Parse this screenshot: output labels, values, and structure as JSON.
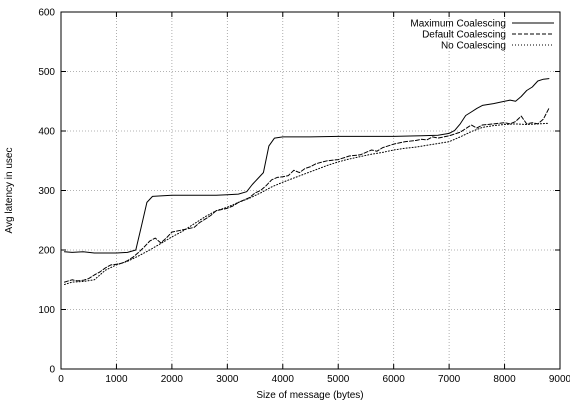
{
  "chart_data": {
    "type": "line",
    "title": "",
    "xlabel": "Size of message (bytes)",
    "ylabel": "Avg latency in usec",
    "xlim": [
      0,
      9000
    ],
    "ylim": [
      0,
      600
    ],
    "xticks": [
      0,
      1000,
      2000,
      3000,
      4000,
      5000,
      6000,
      7000,
      8000,
      9000
    ],
    "yticks": [
      0,
      100,
      200,
      300,
      400,
      500,
      600
    ],
    "grid": true,
    "legend_position": "top-right",
    "series": [
      {
        "name": "Maximum Coalescing",
        "style": "solid",
        "x": [
          64,
          200,
          400,
          600,
          800,
          1000,
          1200,
          1350,
          1450,
          1550,
          1650,
          1800,
          2000,
          2200,
          2400,
          2600,
          2800,
          3000,
          3200,
          3350,
          3450,
          3550,
          3650,
          3750,
          3850,
          4000,
          4500,
          5000,
          5500,
          6000,
          6500,
          6800,
          7000,
          7100,
          7200,
          7300,
          7400,
          7500,
          7600,
          7800,
          8000,
          8100,
          8200,
          8300,
          8400,
          8500,
          8600,
          8700,
          8800
        ],
        "y": [
          197,
          196,
          197,
          195,
          195,
          195,
          196,
          200,
          240,
          280,
          290,
          291,
          292,
          292,
          292,
          292,
          292,
          293,
          294,
          298,
          310,
          320,
          330,
          375,
          388,
          390,
          390,
          391,
          391,
          391,
          392,
          393,
          396,
          401,
          412,
          426,
          432,
          438,
          443,
          446,
          450,
          452,
          450,
          458,
          468,
          474,
          484,
          487,
          488
        ]
      },
      {
        "name": "Default Coalescing",
        "style": "dashed",
        "x": [
          64,
          200,
          300,
          400,
          500,
          600,
          700,
          800,
          900,
          1000,
          1100,
          1200,
          1300,
          1400,
          1500,
          1600,
          1700,
          1800,
          1900,
          2000,
          2200,
          2400,
          2500,
          2600,
          2700,
          2800,
          2900,
          3000,
          3100,
          3200,
          3300,
          3400,
          3500,
          3600,
          3700,
          3800,
          3900,
          4000,
          4100,
          4200,
          4300,
          4400,
          4500,
          4600,
          4800,
          5000,
          5200,
          5400,
          5600,
          5700,
          5800,
          6000,
          6200,
          6400,
          6500,
          6600,
          6700,
          6800,
          7000,
          7200,
          7300,
          7400,
          7500,
          7600,
          7800,
          8000,
          8100,
          8200,
          8300,
          8400,
          8500,
          8600,
          8700,
          8800
        ],
        "y": [
          146,
          150,
          148,
          149,
          152,
          158,
          163,
          170,
          175,
          176,
          178,
          182,
          188,
          196,
          205,
          215,
          220,
          212,
          220,
          230,
          234,
          238,
          246,
          252,
          258,
          266,
          268,
          270,
          274,
          280,
          284,
          288,
          296,
          300,
          308,
          318,
          322,
          323,
          325,
          334,
          330,
          337,
          340,
          345,
          350,
          352,
          358,
          360,
          368,
          366,
          372,
          378,
          382,
          384,
          386,
          385,
          390,
          388,
          392,
          398,
          404,
          410,
          405,
          410,
          412,
          414,
          412,
          416,
          425,
          412,
          414,
          412,
          420,
          438
        ]
      },
      {
        "name": "No Coalescing",
        "style": "dotted",
        "x": [
          64,
          200,
          400,
          600,
          800,
          1000,
          1200,
          1400,
          1600,
          1800,
          2000,
          2200,
          2400,
          2600,
          2800,
          3000,
          3200,
          3400,
          3600,
          3800,
          4000,
          4200,
          4400,
          4600,
          4800,
          5000,
          5200,
          5400,
          5600,
          5800,
          6000,
          6200,
          6400,
          6600,
          6800,
          7000,
          7200,
          7400,
          7600,
          7800,
          8000,
          8200,
          8400,
          8600,
          8800
        ],
        "y": [
          142,
          146,
          147,
          150,
          166,
          175,
          181,
          190,
          200,
          211,
          222,
          232,
          244,
          256,
          266,
          272,
          280,
          287,
          296,
          306,
          314,
          321,
          328,
          335,
          342,
          348,
          353,
          357,
          361,
          364,
          368,
          371,
          373,
          376,
          379,
          382,
          390,
          399,
          406,
          409,
          411,
          412,
          411,
          412,
          413
        ]
      }
    ]
  }
}
